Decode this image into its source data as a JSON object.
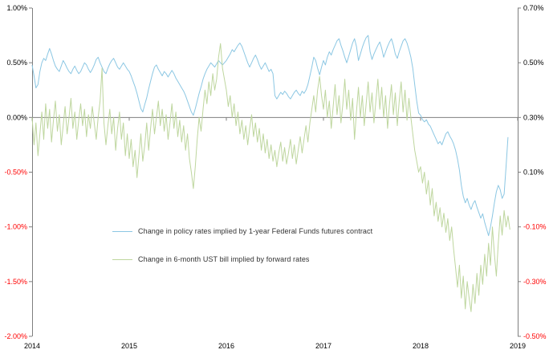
{
  "chart_data": {
    "type": "line",
    "title": "",
    "background_color": "#FFFFFF",
    "axis_color": "#7F7F7F",
    "zero_line_color": "#7F7F7F",
    "tick_label_color": "#000000",
    "negative_tick_label_color": "#FF0000",
    "legend_text_color": "#333333",
    "x_axis": {
      "range": [
        2014,
        2019
      ],
      "tick_labels": [
        "2014",
        "2015",
        "2016",
        "2017",
        "2018",
        "2019"
      ],
      "tick_values": [
        2014,
        2015,
        2016,
        2017,
        2018,
        2019
      ]
    },
    "left_axis": {
      "range": [
        -2.0,
        1.0
      ],
      "tick_labels": [
        "1.00%",
        "0.50%",
        "0.00%",
        "-0.50%",
        "-1.00%",
        "-1.50%",
        "-2.00%"
      ],
      "tick_values": [
        1.0,
        0.5,
        0.0,
        -0.5,
        -1.0,
        -1.5,
        -2.0
      ]
    },
    "right_axis": {
      "range": [
        -0.5,
        0.7
      ],
      "tick_labels": [
        "0.70%",
        "0.50%",
        "0.30%",
        "0.10%",
        "-0.10%",
        "-0.30%",
        "-0.50%"
      ],
      "tick_values": [
        0.7,
        0.5,
        0.3,
        0.1,
        -0.1,
        -0.3,
        -0.5
      ]
    },
    "zero_line_left_value": 0.0,
    "grid": false,
    "legend_position": "inside-center-left",
    "series": [
      {
        "name": "Change in policy rates implied by 1-year Federal Funds futures contract",
        "color": "#8CC7E3",
        "axis": "left",
        "x_start": 2014.0,
        "x_step": 0.02,
        "values": [
          0.48,
          0.38,
          0.27,
          0.3,
          0.42,
          0.5,
          0.54,
          0.52,
          0.58,
          0.63,
          0.58,
          0.52,
          0.47,
          0.44,
          0.42,
          0.47,
          0.52,
          0.49,
          0.45,
          0.42,
          0.4,
          0.44,
          0.47,
          0.43,
          0.4,
          0.42,
          0.46,
          0.5,
          0.48,
          0.44,
          0.41,
          0.44,
          0.48,
          0.53,
          0.55,
          0.5,
          0.46,
          0.42,
          0.4,
          0.45,
          0.49,
          0.52,
          0.54,
          0.5,
          0.46,
          0.44,
          0.47,
          0.5,
          0.47,
          0.44,
          0.42,
          0.38,
          0.33,
          0.28,
          0.22,
          0.15,
          0.08,
          0.05,
          0.12,
          0.18,
          0.26,
          0.33,
          0.4,
          0.46,
          0.48,
          0.44,
          0.41,
          0.38,
          0.42,
          0.4,
          0.37,
          0.4,
          0.43,
          0.4,
          0.36,
          0.33,
          0.3,
          0.27,
          0.24,
          0.2,
          0.15,
          0.1,
          0.05,
          0.02,
          0.08,
          0.15,
          0.22,
          0.28,
          0.35,
          0.4,
          0.44,
          0.47,
          0.5,
          0.48,
          0.46,
          0.49,
          0.52,
          0.5,
          0.48,
          0.5,
          0.52,
          0.55,
          0.58,
          0.62,
          0.6,
          0.63,
          0.66,
          0.68,
          0.65,
          0.6,
          0.55,
          0.5,
          0.46,
          0.5,
          0.54,
          0.57,
          0.53,
          0.48,
          0.44,
          0.47,
          0.5,
          0.46,
          0.42,
          0.44,
          0.4,
          0.2,
          0.17,
          0.2,
          0.23,
          0.21,
          0.24,
          0.22,
          0.19,
          0.17,
          0.2,
          0.23,
          0.25,
          0.22,
          0.2,
          0.24,
          0.22,
          0.25,
          0.3,
          0.38,
          0.46,
          0.55,
          0.52,
          0.45,
          0.39,
          0.46,
          0.52,
          0.48,
          0.55,
          0.6,
          0.57,
          0.62,
          0.66,
          0.7,
          0.72,
          0.66,
          0.61,
          0.55,
          0.5,
          0.56,
          0.62,
          0.68,
          0.72,
          0.65,
          0.52,
          0.58,
          0.64,
          0.69,
          0.73,
          0.75,
          0.6,
          0.53,
          0.58,
          0.62,
          0.66,
          0.69,
          0.63,
          0.55,
          0.6,
          0.65,
          0.69,
          0.72,
          0.66,
          0.58,
          0.54,
          0.6,
          0.65,
          0.7,
          0.72,
          0.68,
          0.62,
          0.55,
          0.45,
          0.3,
          0.15,
          0.04,
          0.02,
          -0.02,
          -0.04,
          -0.02,
          -0.06,
          -0.08,
          -0.12,
          -0.16,
          -0.2,
          -0.24,
          -0.22,
          -0.25,
          -0.2,
          -0.15,
          -0.13,
          -0.17,
          -0.2,
          -0.24,
          -0.3,
          -0.38,
          -0.48,
          -0.62,
          -0.72,
          -0.78,
          -0.74,
          -0.8,
          -0.84,
          -0.79,
          -0.76,
          -0.82,
          -0.87,
          -0.92,
          -0.88,
          -0.96,
          -1.02,
          -1.08,
          -1.0,
          -0.9,
          -0.78,
          -0.68,
          -0.62,
          -0.66,
          -0.74,
          -0.7,
          -0.45,
          -0.18
        ]
      },
      {
        "name": "Change in 6-month UST bill implied by forward rates",
        "color": "#BED69E",
        "axis": "right",
        "x_start": 2014.0,
        "x_step": 0.02,
        "values": [
          0.3,
          0.2,
          0.28,
          0.16,
          0.24,
          0.32,
          0.22,
          0.35,
          0.26,
          0.33,
          0.21,
          0.29,
          0.36,
          0.25,
          0.31,
          0.2,
          0.27,
          0.34,
          0.24,
          0.3,
          0.37,
          0.26,
          0.32,
          0.22,
          0.29,
          0.35,
          0.27,
          0.33,
          0.23,
          0.31,
          0.26,
          0.34,
          0.28,
          0.22,
          0.3,
          0.36,
          0.48,
          0.28,
          0.2,
          0.27,
          0.33,
          0.24,
          0.3,
          0.18,
          0.26,
          0.32,
          0.22,
          0.28,
          0.16,
          0.24,
          0.15,
          0.22,
          0.12,
          0.18,
          0.08,
          0.16,
          0.24,
          0.14,
          0.2,
          0.28,
          0.18,
          0.26,
          0.33,
          0.24,
          0.3,
          0.36,
          0.27,
          0.33,
          0.25,
          0.31,
          0.22,
          0.28,
          0.35,
          0.26,
          0.32,
          0.23,
          0.29,
          0.21,
          0.27,
          0.18,
          0.24,
          0.15,
          0.1,
          0.04,
          0.12,
          0.22,
          0.3,
          0.25,
          0.33,
          0.4,
          0.35,
          0.43,
          0.38,
          0.46,
          0.4,
          0.44,
          0.52,
          0.57,
          0.48,
          0.44,
          0.4,
          0.34,
          0.38,
          0.3,
          0.35,
          0.27,
          0.32,
          0.24,
          0.29,
          0.22,
          0.27,
          0.2,
          0.26,
          0.31,
          0.23,
          0.28,
          0.21,
          0.26,
          0.18,
          0.24,
          0.17,
          0.22,
          0.15,
          0.2,
          0.14,
          0.18,
          0.12,
          0.17,
          0.21,
          0.14,
          0.19,
          0.13,
          0.17,
          0.22,
          0.15,
          0.2,
          0.13,
          0.18,
          0.23,
          0.17,
          0.22,
          0.27,
          0.21,
          0.28,
          0.33,
          0.38,
          0.32,
          0.4,
          0.45,
          0.38,
          0.33,
          0.4,
          0.3,
          0.36,
          0.26,
          0.34,
          0.42,
          0.31,
          0.38,
          0.28,
          0.35,
          0.44,
          0.33,
          0.4,
          0.29,
          0.37,
          0.22,
          0.32,
          0.41,
          0.3,
          0.38,
          0.27,
          0.35,
          0.43,
          0.32,
          0.39,
          0.28,
          0.36,
          0.44,
          0.33,
          0.41,
          0.3,
          0.38,
          0.26,
          0.35,
          0.42,
          0.31,
          0.39,
          0.27,
          0.36,
          0.43,
          0.32,
          0.4,
          0.29,
          0.37,
          0.3,
          0.24,
          0.18,
          0.14,
          0.1,
          0.12,
          0.06,
          0.1,
          0.02,
          0.07,
          -0.02,
          0.04,
          -0.06,
          -0.01,
          -0.08,
          -0.03,
          -0.1,
          -0.05,
          -0.12,
          -0.07,
          -0.15,
          -0.1,
          -0.18,
          -0.25,
          -0.32,
          -0.24,
          -0.36,
          -0.28,
          -0.4,
          -0.3,
          -0.36,
          -0.41,
          -0.31,
          -0.38,
          -0.27,
          -0.35,
          -0.24,
          -0.31,
          -0.2,
          -0.28,
          -0.16,
          -0.24,
          -0.1,
          -0.2,
          -0.28,
          -0.16,
          -0.06,
          -0.13,
          -0.04,
          -0.1,
          -0.06,
          -0.11
        ]
      }
    ]
  }
}
